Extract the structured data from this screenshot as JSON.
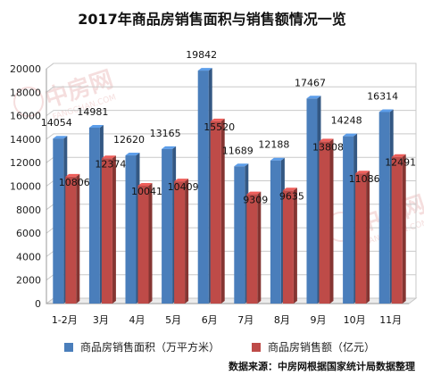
{
  "chart_data": {
    "type": "bar",
    "title": "2017年商品房销售面积与销售额情况一览",
    "categories": [
      "1-2月",
      "3月",
      "4月",
      "5月",
      "6月",
      "7月",
      "8月",
      "9月",
      "10月",
      "11月"
    ],
    "series": [
      {
        "name": "商品房销售面积（万平方米）",
        "color": "#4a7ebb",
        "values": [
          14054,
          14981,
          12620,
          13165,
          19842,
          11689,
          12188,
          17467,
          14248,
          16314
        ]
      },
      {
        "name": "商品房销售额（亿元）",
        "color": "#be4b48",
        "values": [
          10806,
          12374,
          10041,
          10409,
          15520,
          9309,
          9635,
          13808,
          11086,
          12491
        ]
      }
    ],
    "ylim": [
      0,
      20000
    ],
    "yticks": [
      0,
      2000,
      4000,
      6000,
      8000,
      10000,
      12000,
      14000,
      16000,
      18000,
      20000
    ],
    "grid": true,
    "legend_position": "bottom"
  },
  "watermark": {
    "brand": "中房网",
    "url": "FANGCHAN.COM"
  },
  "source_note": "数据来源：中房网根据国家统计局数据整理"
}
